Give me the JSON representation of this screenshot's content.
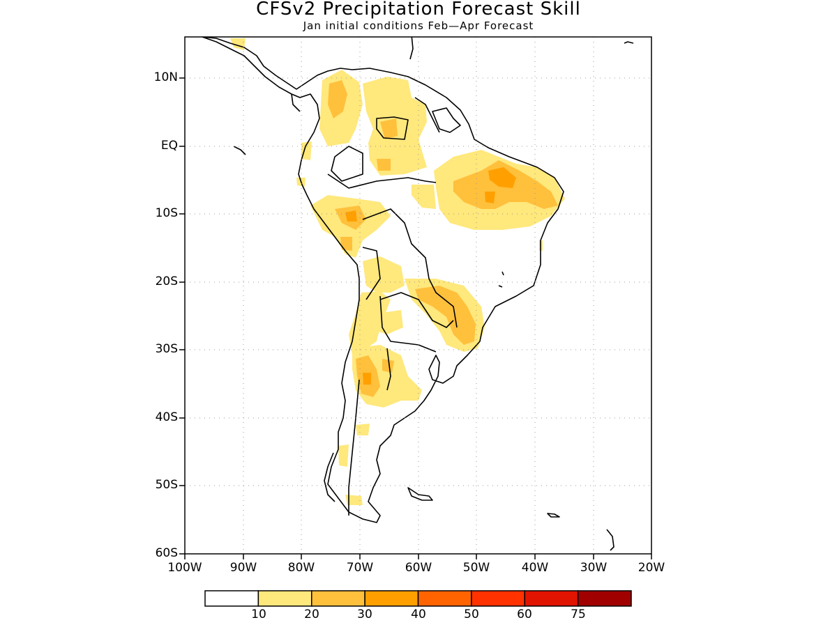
{
  "title": "CFSv2 Precipitation Forecast Skill",
  "subtitle": "Jan initial conditions  Feb—Apr Forecast",
  "map": {
    "lon_range": [
      -100,
      -20
    ],
    "lat_range": [
      -60,
      15
    ],
    "grid": "dotted"
  },
  "lat_labels": [
    "10N",
    "EQ",
    "10S",
    "20S",
    "30S",
    "40S",
    "50S",
    "60S"
  ],
  "lon_labels": [
    "100W",
    "90W",
    "80W",
    "70W",
    "60W",
    "50W",
    "40W",
    "30W",
    "20W"
  ],
  "colorbar": {
    "labels": [
      "10",
      "20",
      "30",
      "40",
      "50",
      "60",
      "75"
    ],
    "colors": [
      "#ffffff",
      "#ffe87c",
      "#ffc03c",
      "#ffa000",
      "#ff6400",
      "#ff3200",
      "#e01400",
      "#a00000"
    ]
  }
}
